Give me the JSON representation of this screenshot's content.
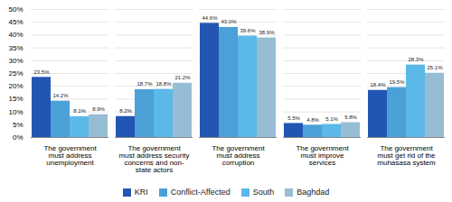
{
  "chart_data": {
    "type": "bar",
    "categories": [
      "The government\nmust address\nunemployment",
      "The government\nmust address security\nconcerns and non-\nstate actors",
      "The government\nmust address\ncorruption",
      "The government\nmust improve\nservices",
      "The government\nmust get rid of the\nmuhasasa system"
    ],
    "series": [
      {
        "name": "KRI",
        "color": "#2356B2",
        "values": [
          23.5,
          8.2,
          44.6,
          5.5,
          18.4
        ],
        "value_labels": [
          "23.5%",
          "8.2%",
          "44.6%",
          "5.5%",
          "18.4%"
        ]
      },
      {
        "name": "Conflict-Affected",
        "color": "#4BA0D8",
        "values": [
          14.2,
          18.7,
          43.0,
          4.8,
          19.5
        ],
        "value_labels": [
          "14.2%",
          "18.7%",
          "43.0%",
          "4.8%",
          "19.5%"
        ]
      },
      {
        "name": "South",
        "color": "#5BB8E8",
        "values": [
          8.1,
          18.8,
          39.6,
          5.1,
          28.3
        ],
        "value_labels": [
          "8.1%",
          "18.8%",
          "39.6%",
          "5.1%",
          "28.3%"
        ]
      },
      {
        "name": "Baghdad",
        "color": "#96BDD4",
        "values": [
          8.9,
          21.2,
          38.9,
          5.8,
          25.1
        ],
        "value_labels": [
          "8.9%",
          "21.2%",
          "38.9%",
          "5.8%",
          "25.1%"
        ]
      }
    ],
    "ylim": [
      0,
      50
    ],
    "yticks": [
      {
        "value": 0,
        "label": "0%"
      },
      {
        "value": 5,
        "label": "5%"
      },
      {
        "value": 10,
        "label": "10%"
      },
      {
        "value": 15,
        "label": "15%"
      },
      {
        "value": 20,
        "label": "20%"
      },
      {
        "value": 25,
        "label": "25%"
      },
      {
        "value": 30,
        "label": "30%"
      },
      {
        "value": 35,
        "label": "35%"
      },
      {
        "value": 40,
        "label": "40%"
      },
      {
        "value": 45,
        "label": "45%"
      },
      {
        "value": 50,
        "label": "50%"
      }
    ],
    "grid": true,
    "data_labels": true,
    "legend": "bottom"
  }
}
